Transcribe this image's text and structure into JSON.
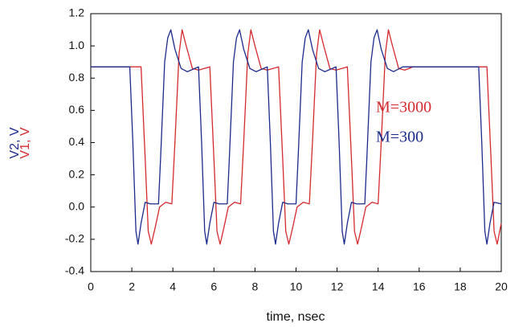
{
  "chart_data": {
    "type": "line",
    "xlabel": "time, nsec",
    "xlim": [
      0,
      20
    ],
    "xticks": [
      0,
      2,
      4,
      6,
      8,
      10,
      12,
      14,
      16,
      18,
      20
    ],
    "ylim": [
      -0.4,
      1.2
    ],
    "yticks": [
      -0.4,
      -0.2,
      {
        "value": 0,
        "label": "0.0"
      },
      0.2,
      0.4,
      0.6,
      0.8,
      {
        "value": 1,
        "label": "1.0"
      },
      1.2
    ],
    "grid": false,
    "legend": "right",
    "series": [
      {
        "name": "M=3000",
        "ylabel": "V1, V",
        "color": "#d42a2f",
        "x": [
          0,
          2.45,
          2.65,
          2.8,
          2.95,
          3.15,
          3.35,
          3.65,
          3.95,
          4.1,
          4.3,
          4.45,
          4.65,
          4.95,
          5.25,
          5.8,
          6.0,
          6.15,
          6.3,
          6.5,
          6.7,
          7.0,
          7.3,
          7.45,
          7.65,
          7.8,
          8.0,
          8.3,
          8.6,
          9.15,
          9.35,
          9.5,
          9.65,
          9.85,
          10.05,
          10.35,
          10.65,
          10.8,
          11.0,
          11.15,
          11.35,
          11.65,
          11.95,
          12.5,
          12.7,
          12.85,
          13.0,
          13.2,
          13.4,
          13.7,
          14.0,
          14.15,
          14.35,
          14.5,
          14.7,
          15.0,
          15.3,
          15.7,
          19.3,
          19.5,
          19.65,
          19.8,
          20
        ],
        "values": [
          0.87,
          0.87,
          0.3,
          -0.15,
          -0.23,
          -0.12,
          0.0,
          0.03,
          0.02,
          0.4,
          0.95,
          1.1,
          1.0,
          0.86,
          0.85,
          0.87,
          0.3,
          -0.15,
          -0.23,
          -0.12,
          0.0,
          0.03,
          0.02,
          0.4,
          0.95,
          1.1,
          1.0,
          0.86,
          0.85,
          0.87,
          0.3,
          -0.15,
          -0.23,
          -0.12,
          0.0,
          0.03,
          0.02,
          0.4,
          0.95,
          1.1,
          1.0,
          0.86,
          0.85,
          0.87,
          0.3,
          -0.15,
          -0.23,
          -0.12,
          0.0,
          0.03,
          0.02,
          0.4,
          0.95,
          1.1,
          1.0,
          0.86,
          0.85,
          0.87,
          0.87,
          0.3,
          -0.15,
          -0.23,
          -0.1
        ]
      },
      {
        "name": "M=300",
        "ylabel": "V2, V",
        "color": "#1c2a8c",
        "x": [
          0,
          1.9,
          2.05,
          2.2,
          2.3,
          2.45,
          2.65,
          2.9,
          3.3,
          3.4,
          3.6,
          3.75,
          3.9,
          4.1,
          4.4,
          4.7,
          5.25,
          5.4,
          5.55,
          5.65,
          5.8,
          6.0,
          6.25,
          6.65,
          6.75,
          6.95,
          7.1,
          7.25,
          7.45,
          7.75,
          8.05,
          8.6,
          8.75,
          8.9,
          9.0,
          9.15,
          9.35,
          9.6,
          10.0,
          10.1,
          10.3,
          10.45,
          10.6,
          10.8,
          11.1,
          11.4,
          11.95,
          12.1,
          12.25,
          12.35,
          12.5,
          12.7,
          12.95,
          13.35,
          13.45,
          13.65,
          13.8,
          13.95,
          14.15,
          14.45,
          14.75,
          15.2,
          18.9,
          19.05,
          19.2,
          19.3,
          19.45,
          19.65,
          20
        ],
        "values": [
          0.87,
          0.87,
          0.4,
          -0.15,
          -0.23,
          -0.1,
          0.03,
          0.02,
          0.02,
          0.3,
          0.9,
          1.05,
          1.1,
          0.98,
          0.86,
          0.84,
          0.87,
          0.4,
          -0.15,
          -0.23,
          -0.1,
          0.03,
          0.02,
          0.02,
          0.3,
          0.9,
          1.05,
          1.1,
          0.98,
          0.86,
          0.84,
          0.87,
          0.4,
          -0.15,
          -0.23,
          -0.1,
          0.03,
          0.02,
          0.02,
          0.3,
          0.9,
          1.05,
          1.1,
          0.98,
          0.86,
          0.84,
          0.87,
          0.4,
          -0.15,
          -0.23,
          -0.1,
          0.03,
          0.02,
          0.02,
          0.3,
          0.9,
          1.05,
          1.1,
          0.98,
          0.86,
          0.84,
          0.87,
          0.87,
          0.4,
          -0.15,
          -0.23,
          -0.1,
          0.03,
          0.02
        ]
      }
    ]
  }
}
